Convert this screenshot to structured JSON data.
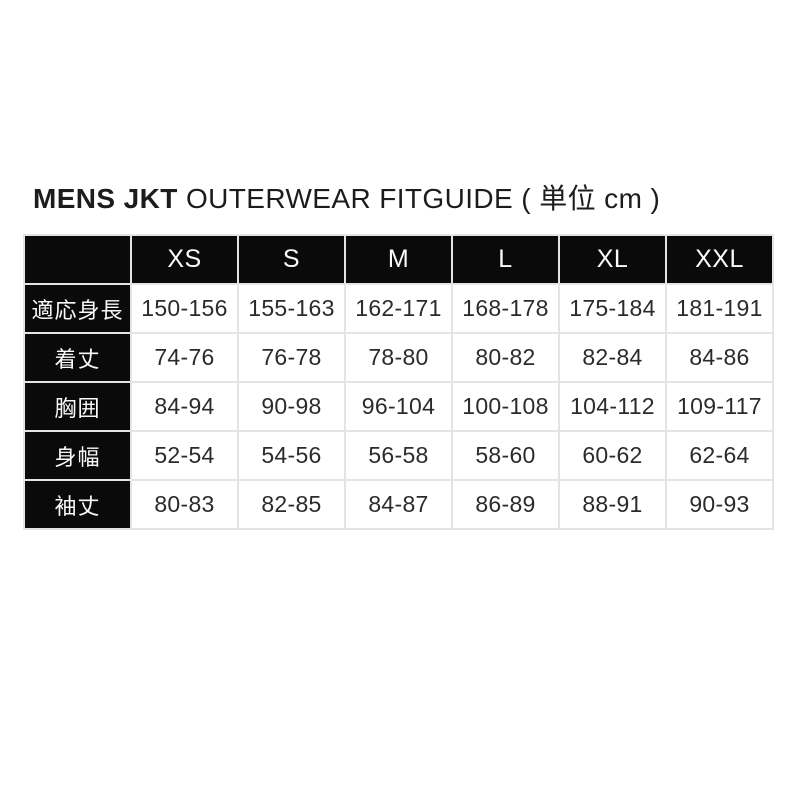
{
  "header": {
    "brand": "MENS JKT",
    "subtitle": "OUTERWEAR FITGUIDE",
    "unit": "( 単位 cm )"
  },
  "chart_data": {
    "type": "table",
    "title": "MENS JKT OUTERWEAR FITGUIDE ( 単位 cm )",
    "unit": "cm",
    "columns": [
      "XS",
      "S",
      "M",
      "L",
      "XL",
      "XXL"
    ],
    "rows": [
      {
        "label": "適応身長",
        "values": [
          "150-156",
          "155-163",
          "162-171",
          "168-178",
          "175-184",
          "181-191"
        ]
      },
      {
        "label": "着丈",
        "values": [
          "74-76",
          "76-78",
          "78-80",
          "80-82",
          "82-84",
          "84-86"
        ]
      },
      {
        "label": "胸囲",
        "values": [
          "84-94",
          "90-98",
          "96-104",
          "100-108",
          "104-112",
          "109-117"
        ]
      },
      {
        "label": "身幅",
        "values": [
          "52-54",
          "54-56",
          "56-58",
          "58-60",
          "60-62",
          "62-64"
        ]
      },
      {
        "label": "袖丈",
        "values": [
          "80-83",
          "82-85",
          "84-87",
          "86-89",
          "88-91",
          "90-93"
        ]
      }
    ]
  },
  "colors": {
    "cell_black": "#0a0a0a",
    "grid_line": "#e4e4e4",
    "text_dark": "#2b2b2b",
    "text_light": "#fafafa",
    "background": "#ffffff"
  }
}
